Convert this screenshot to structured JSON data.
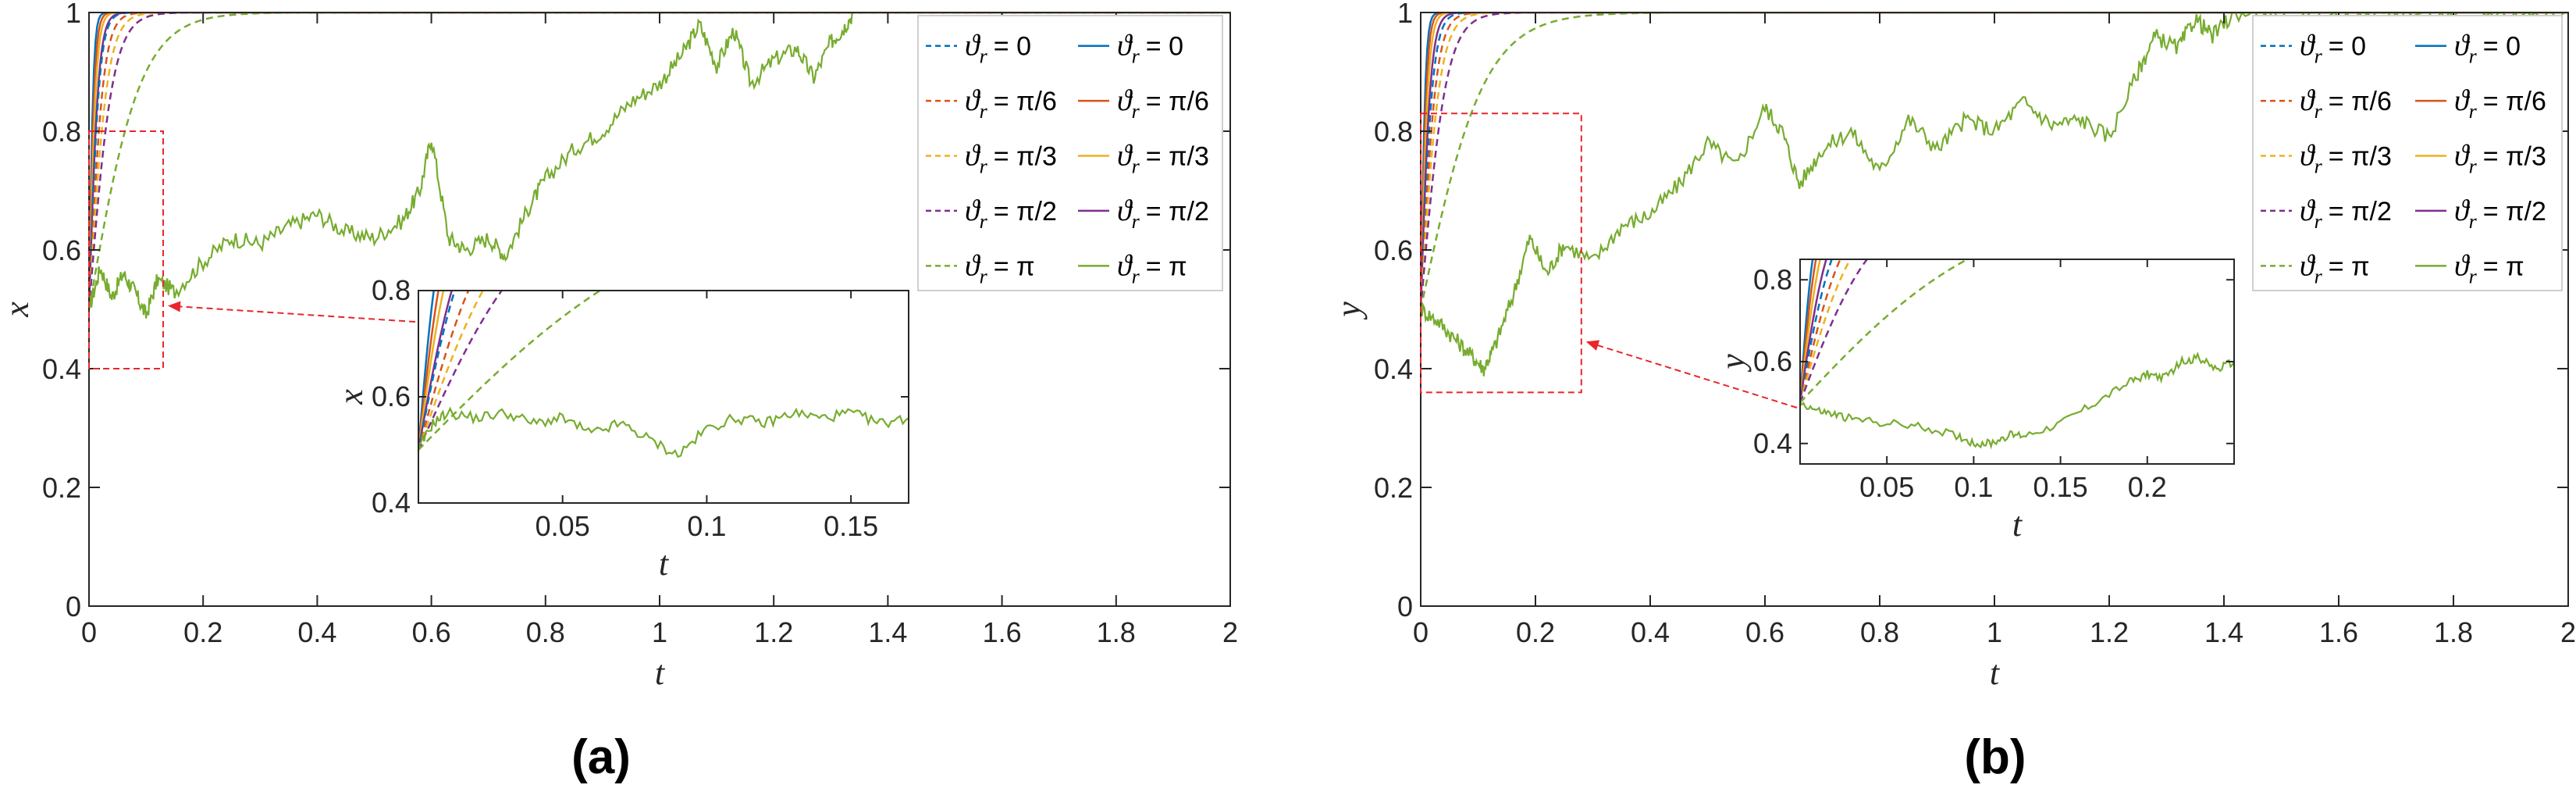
{
  "colors": {
    "blue": "#0072BD",
    "red": "#D95319",
    "yellow": "#EDB120",
    "purple": "#7E2F8E",
    "green": "#77AC30",
    "zoom_box": "#E8262B",
    "axis": "#262626",
    "grid": "#e6e6e6"
  },
  "chart_data": [
    {
      "type": "line",
      "panel_label": "(a)",
      "xlabel": "t",
      "ylabel": "x",
      "xlim": [
        0,
        2
      ],
      "ylim": [
        0,
        1
      ],
      "xticks": [
        0,
        0.2,
        0.4,
        0.6,
        0.8,
        1,
        1.2,
        1.4,
        1.6,
        1.8,
        2
      ],
      "xtick_labels": [
        "0",
        "0.2",
        "0.4",
        "0.6",
        "0.8",
        "1",
        "1.2",
        "1.4",
        "1.6",
        "1.8",
        "2"
      ],
      "yticks": [
        0,
        0.2,
        0.4,
        0.6,
        0.8,
        1
      ],
      "ytick_labels": [
        "0",
        "0.2",
        "0.4",
        "0.6",
        "0.8",
        "1"
      ],
      "grid": false,
      "legend_placement": "top-right",
      "legend_columns": 2,
      "initial_value": 0.5,
      "legend": [
        {
          "symbol": "ϑ",
          "sub": "r",
          "value": "= 0",
          "color": "blue",
          "style": "dashed"
        },
        {
          "symbol": "ϑ",
          "sub": "r",
          "value": "= 0",
          "color": "blue",
          "style": "solid"
        },
        {
          "symbol": "ϑ",
          "sub": "r",
          "value": "= π/6",
          "color": "red",
          "style": "dashed"
        },
        {
          "symbol": "ϑ",
          "sub": "r",
          "value": "= π/6",
          "color": "red",
          "style": "solid"
        },
        {
          "symbol": "ϑ",
          "sub": "r",
          "value": "= π/3",
          "color": "yellow",
          "style": "dashed"
        },
        {
          "symbol": "ϑ",
          "sub": "r",
          "value": "= π/3",
          "color": "yellow",
          "style": "solid"
        },
        {
          "symbol": "ϑ",
          "sub": "r",
          "value": "= π/2",
          "color": "purple",
          "style": "dashed"
        },
        {
          "symbol": "ϑ",
          "sub": "r",
          "value": "= π/2",
          "color": "purple",
          "style": "solid"
        },
        {
          "symbol": "ϑ",
          "sub": "r",
          "value": "= π",
          "color": "green",
          "style": "dashed"
        },
        {
          "symbol": "ϑ",
          "sub": "r",
          "value": "= π",
          "color": "green",
          "style": "solid"
        }
      ],
      "dashed_rise_rates": [
        110,
        80,
        62,
        48,
        22
      ],
      "solid_rise_rates": [
        260,
        200,
        160,
        120
      ],
      "stochastic_series": {
        "t": [
          0,
          0.02,
          0.04,
          0.06,
          0.08,
          0.1,
          0.12,
          0.15,
          0.2,
          0.25,
          0.3,
          0.35,
          0.4,
          0.45,
          0.5,
          0.55,
          0.58,
          0.6,
          0.63,
          0.66,
          0.7,
          0.73,
          0.77,
          0.8,
          0.85,
          0.9,
          0.95,
          1.0,
          1.04,
          1.07,
          1.1,
          1.13,
          1.16,
          1.2,
          1.24,
          1.27,
          1.3,
          1.32,
          1.34
        ],
        "value": [
          0.5,
          0.57,
          0.52,
          0.56,
          0.53,
          0.49,
          0.55,
          0.53,
          0.58,
          0.62,
          0.61,
          0.64,
          0.66,
          0.63,
          0.62,
          0.65,
          0.7,
          0.79,
          0.62,
          0.6,
          0.62,
          0.59,
          0.67,
          0.72,
          0.77,
          0.8,
          0.85,
          0.88,
          0.93,
          0.98,
          0.91,
          0.97,
          0.88,
          0.92,
          0.94,
          0.89,
          0.95,
          0.97,
          1.0
        ]
      },
      "zoom_box": {
        "xlim": [
          0,
          0.13
        ],
        "ylim": [
          0.4,
          0.8
        ]
      },
      "inset": {
        "xlabel": "t",
        "ylabel": "x",
        "xlim": [
          0,
          0.17
        ],
        "ylim": [
          0.4,
          0.8
        ],
        "xticks": [
          0.05,
          0.1,
          0.15
        ],
        "xtick_labels": [
          "0.05",
          "0.1",
          "0.15"
        ],
        "yticks": [
          0.4,
          0.6,
          0.8
        ],
        "ytick_labels": [
          "0.4",
          "0.6",
          "0.8"
        ],
        "stochastic_series": {
          "t": [
            0,
            0.005,
            0.01,
            0.02,
            0.03,
            0.04,
            0.05,
            0.06,
            0.07,
            0.08,
            0.09,
            0.1,
            0.11,
            0.12,
            0.13,
            0.14,
            0.15,
            0.16,
            0.17
          ],
          "value": [
            0.5,
            0.55,
            0.57,
            0.56,
            0.57,
            0.55,
            0.56,
            0.53,
            0.55,
            0.52,
            0.49,
            0.54,
            0.56,
            0.55,
            0.57,
            0.56,
            0.57,
            0.55,
            0.56
          ]
        }
      }
    },
    {
      "type": "line",
      "panel_label": "(b)",
      "xlabel": "t",
      "ylabel": "y",
      "xlim": [
        0,
        2
      ],
      "ylim": [
        0,
        1
      ],
      "xticks": [
        0,
        0.2,
        0.4,
        0.6,
        0.8,
        1,
        1.2,
        1.4,
        1.6,
        1.8,
        2
      ],
      "xtick_labels": [
        "0",
        "0.2",
        "0.4",
        "0.6",
        "0.8",
        "1",
        "1.2",
        "1.4",
        "1.6",
        "1.8",
        "2"
      ],
      "yticks": [
        0,
        0.2,
        0.4,
        0.6,
        0.8,
        1
      ],
      "ytick_labels": [
        "0",
        "0.2",
        "0.4",
        "0.6",
        "0.8",
        "1"
      ],
      "grid": false,
      "legend_placement": "top-right",
      "legend_columns": 2,
      "initial_value": 0.5,
      "legend": [
        {
          "symbol": "ϑ",
          "sub": "r",
          "value": "= 0",
          "color": "blue",
          "style": "dashed"
        },
        {
          "symbol": "ϑ",
          "sub": "r",
          "value": "= 0",
          "color": "blue",
          "style": "solid"
        },
        {
          "symbol": "ϑ",
          "sub": "r",
          "value": "= π/6",
          "color": "red",
          "style": "dashed"
        },
        {
          "symbol": "ϑ",
          "sub": "r",
          "value": "= π/6",
          "color": "red",
          "style": "solid"
        },
        {
          "symbol": "ϑ",
          "sub": "r",
          "value": "= π/3",
          "color": "yellow",
          "style": "dashed"
        },
        {
          "symbol": "ϑ",
          "sub": "r",
          "value": "= π/3",
          "color": "yellow",
          "style": "solid"
        },
        {
          "symbol": "ϑ",
          "sub": "r",
          "value": "= π/2",
          "color": "purple",
          "style": "dashed"
        },
        {
          "symbol": "ϑ",
          "sub": "r",
          "value": "= π/2",
          "color": "purple",
          "style": "solid"
        },
        {
          "symbol": "ϑ",
          "sub": "r",
          "value": "= π",
          "color": "green",
          "style": "dashed"
        },
        {
          "symbol": "ϑ",
          "sub": "r",
          "value": "= π",
          "color": "green",
          "style": "solid"
        }
      ],
      "dashed_rise_rates": [
        95,
        75,
        60,
        45,
        18
      ],
      "solid_rise_rates": [
        240,
        190,
        150,
        115
      ],
      "stochastic_series": {
        "t": [
          0,
          0.03,
          0.06,
          0.09,
          0.11,
          0.13,
          0.16,
          0.19,
          0.22,
          0.25,
          0.3,
          0.35,
          0.4,
          0.45,
          0.5,
          0.55,
          0.6,
          0.63,
          0.66,
          0.7,
          0.75,
          0.8,
          0.85,
          0.9,
          0.95,
          1.0,
          1.05,
          1.1,
          1.15,
          1.2,
          1.25,
          1.28,
          1.32,
          1.35,
          1.38,
          1.42,
          1.5,
          1.6,
          1.7,
          1.8,
          1.9,
          2.0
        ],
        "value": [
          0.5,
          0.48,
          0.45,
          0.42,
          0.4,
          0.44,
          0.52,
          0.62,
          0.56,
          0.61,
          0.58,
          0.64,
          0.66,
          0.71,
          0.78,
          0.74,
          0.84,
          0.8,
          0.71,
          0.77,
          0.8,
          0.73,
          0.82,
          0.77,
          0.82,
          0.8,
          0.85,
          0.81,
          0.82,
          0.79,
          0.9,
          0.96,
          0.94,
          0.99,
          0.96,
          1.0,
          1.0,
          1.0,
          1.0,
          1.0,
          1.0,
          1.0
        ]
      },
      "zoom_box": {
        "xlim": [
          0,
          0.28
        ],
        "ylim": [
          0.36,
          0.83
        ]
      },
      "inset": {
        "xlabel": "t",
        "ylabel": "y",
        "xlim": [
          0,
          0.25
        ],
        "ylim": [
          0.35,
          0.85
        ],
        "xticks": [
          0.05,
          0.1,
          0.15,
          0.2
        ],
        "xtick_labels": [
          "0.05",
          "0.1",
          "0.15",
          "0.2"
        ],
        "yticks": [
          0.4,
          0.6,
          0.8
        ],
        "ytick_labels": [
          "0.4",
          "0.6",
          "0.8"
        ],
        "stochastic_series": {
          "t": [
            0,
            0.01,
            0.02,
            0.03,
            0.05,
            0.07,
            0.09,
            0.1,
            0.11,
            0.12,
            0.13,
            0.15,
            0.17,
            0.19,
            0.2,
            0.21,
            0.22,
            0.23,
            0.24,
            0.25
          ],
          "value": [
            0.5,
            0.48,
            0.47,
            0.46,
            0.45,
            0.44,
            0.42,
            0.4,
            0.4,
            0.42,
            0.42,
            0.45,
            0.5,
            0.55,
            0.57,
            0.56,
            0.6,
            0.61,
            0.58,
            0.6
          ]
        }
      }
    }
  ]
}
